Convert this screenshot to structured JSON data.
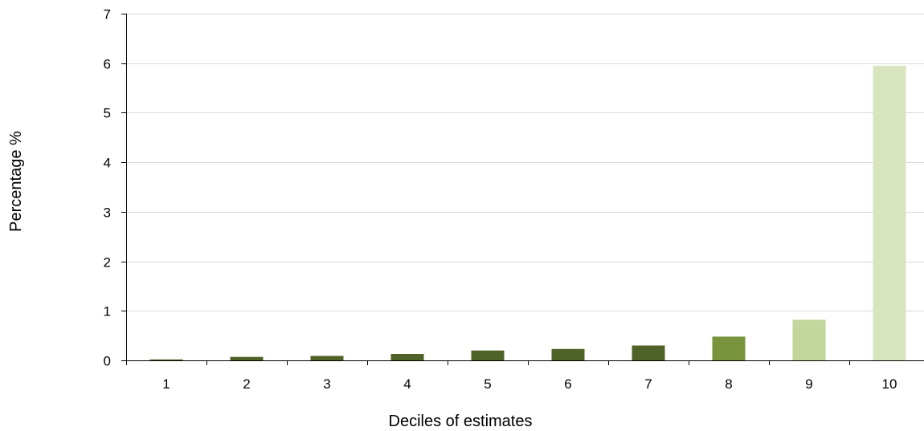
{
  "chart_data": {
    "type": "bar",
    "title": "",
    "xlabel": "Deciles of estimates",
    "ylabel": "Percentage %",
    "categories": [
      "1",
      "2",
      "3",
      "4",
      "5",
      "6",
      "7",
      "8",
      "9",
      "10"
    ],
    "values": [
      0.02,
      0.07,
      0.09,
      0.13,
      0.2,
      0.23,
      0.3,
      0.48,
      0.82,
      5.95
    ],
    "bar_colors": [
      "#4f6228",
      "#4f6228",
      "#4f6228",
      "#4f6228",
      "#4f6228",
      "#4f6228",
      "#4f6228",
      "#77933c",
      "#c3d69b",
      "#d7e4bd"
    ],
    "ylim": [
      0,
      7
    ],
    "yticks": [
      0,
      1,
      2,
      3,
      4,
      5,
      6,
      7
    ],
    "grid": true,
    "legend": "none"
  }
}
